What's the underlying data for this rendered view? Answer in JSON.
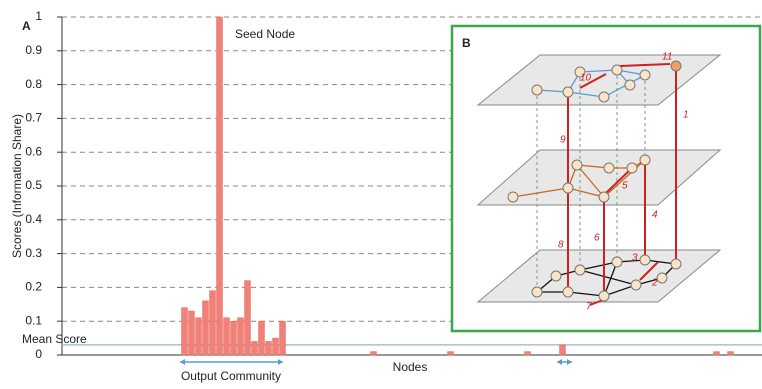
{
  "chart_data": {
    "type": "bar",
    "panel_label": "A",
    "ylabel": "Scores (Information Share)",
    "xlabel": "Nodes",
    "categories": [
      null,
      null,
      null,
      null,
      null,
      null,
      null,
      null,
      null,
      null,
      null,
      null,
      null,
      null,
      null,
      null,
      null,
      null,
      null,
      null,
      null,
      null,
      null,
      null,
      null,
      null,
      null,
      null,
      null,
      null,
      null,
      null,
      null,
      null,
      null,
      null,
      null,
      null,
      null,
      null,
      null,
      null,
      null,
      null,
      null,
      null,
      null,
      null,
      null,
      null,
      null,
      null,
      null,
      null,
      null,
      null,
      null,
      null,
      null,
      null,
      null,
      null,
      null,
      null,
      null,
      null,
      null,
      null,
      null,
      null,
      null,
      null,
      null,
      null,
      null,
      null,
      null,
      null,
      null,
      null,
      null,
      null,
      null,
      null,
      null,
      null,
      null,
      null,
      null,
      null,
      null,
      null,
      null,
      null,
      null,
      null,
      null,
      null,
      null,
      null
    ],
    "values": [
      0,
      0,
      0,
      0,
      0,
      0,
      0,
      0,
      0,
      0,
      0,
      0,
      0,
      0,
      0,
      0,
      0,
      0.14,
      0.13,
      0.11,
      0.16,
      0.19,
      1.0,
      0.11,
      0.1,
      0.11,
      0.22,
      0.04,
      0.1,
      0.04,
      0.05,
      0.1,
      0,
      0,
      0,
      0,
      0,
      0,
      0,
      0,
      0,
      0,
      0,
      0,
      0.01,
      0,
      0,
      0,
      0,
      0,
      0,
      0,
      0,
      0,
      0,
      0.01,
      0,
      0,
      0,
      0,
      0,
      0,
      0,
      0,
      0,
      0,
      0.01,
      0,
      0,
      0,
      0,
      0.03,
      0,
      0,
      0,
      0,
      0,
      0,
      0,
      0,
      0,
      0,
      0,
      0,
      0,
      0,
      0,
      0,
      0,
      0,
      0,
      0,
      0,
      0.01,
      0,
      0.01,
      0,
      0,
      0,
      0
    ],
    "color": "#f08078",
    "ylim": [
      0,
      1
    ],
    "yticks": [
      0,
      0.1,
      0.2,
      0.3,
      0.4,
      0.5,
      0.6,
      0.7,
      0.8,
      0.9,
      1
    ],
    "grid": true,
    "mean_score": 0.03,
    "annotations": {
      "seed": "Seed Node",
      "mean": "Mean Score",
      "community": "Output Community"
    }
  },
  "inset": {
    "label": "B",
    "steps": [
      "1",
      "2",
      "3",
      "4",
      "5",
      "6",
      "7",
      "8",
      "9",
      "10",
      "11"
    ]
  }
}
